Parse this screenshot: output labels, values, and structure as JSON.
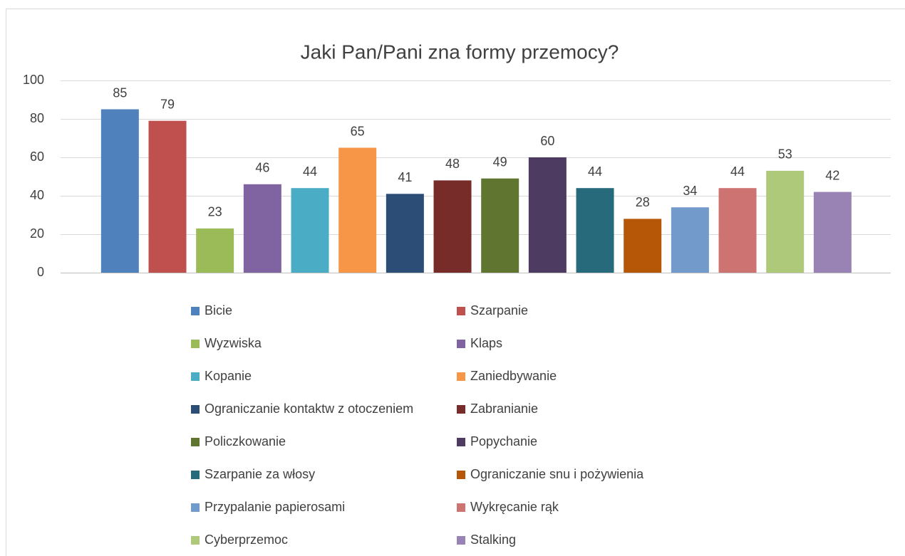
{
  "chart_data": {
    "type": "bar",
    "title": "Jaki Pan/Pani zna formy przemocy?",
    "categories": [
      null
    ],
    "series": [
      {
        "name": "Bicie",
        "color": "#4f81bd",
        "values": [
          85
        ]
      },
      {
        "name": "Szarpanie",
        "color": "#c0504d",
        "values": [
          79
        ]
      },
      {
        "name": "Wyzwiska",
        "color": "#9bbb59",
        "values": [
          23
        ]
      },
      {
        "name": "Klaps",
        "color": "#8064a2",
        "values": [
          46
        ]
      },
      {
        "name": "Kopanie",
        "color": "#4bacc6",
        "values": [
          44
        ]
      },
      {
        "name": "Zaniedbywanie",
        "color": "#f79646",
        "values": [
          65
        ]
      },
      {
        "name": "Ograniczanie kontaktw z otoczeniem",
        "color": "#2c4d75",
        "values": [
          41
        ]
      },
      {
        "name": "Zabranianie",
        "color": "#772c2a",
        "values": [
          48
        ]
      },
      {
        "name": "Policzkowanie",
        "color": "#5f7530",
        "values": [
          49
        ]
      },
      {
        "name": "Popychanie",
        "color": "#4d3b62",
        "values": [
          60
        ]
      },
      {
        "name": "Szarpanie za włosy",
        "color": "#276a7c",
        "values": [
          44
        ]
      },
      {
        "name": "Ograniczanie snu i pożywienia",
        "color": "#b65708",
        "values": [
          28
        ]
      },
      {
        "name": "Przypalanie papierosami",
        "color": "#729aca",
        "values": [
          34
        ]
      },
      {
        "name": "Wykręcanie rąk",
        "color": "#cd7371",
        "values": [
          44
        ]
      },
      {
        "name": "Cyberprzemoc",
        "color": "#afc97a",
        "values": [
          53
        ]
      },
      {
        "name": "Stalking",
        "color": "#9983b5",
        "values": [
          42
        ]
      }
    ],
    "ylim": [
      0,
      100
    ],
    "yticks": [
      0,
      20,
      40,
      60,
      80,
      100
    ],
    "grid": true,
    "legend": "bottom"
  }
}
